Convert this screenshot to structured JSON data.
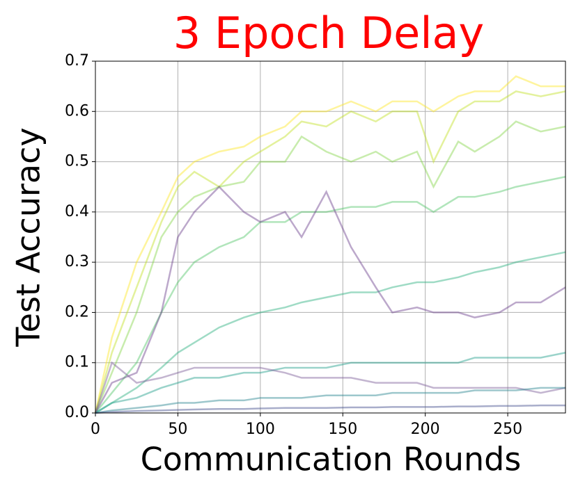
{
  "chart_data": {
    "type": "line",
    "title": "3 Epoch Delay",
    "title_color": "#ff0000",
    "x_label": "Communication Rounds",
    "y_label": "Test Accuracy",
    "x": [
      0,
      10,
      25,
      40,
      50,
      60,
      75,
      90,
      100,
      115,
      125,
      140,
      155,
      170,
      180,
      195,
      205,
      220,
      230,
      245,
      255,
      270,
      285
    ],
    "xlim": [
      0,
      285
    ],
    "xticks": [
      0,
      50,
      100,
      150,
      200,
      250
    ],
    "ylim": [
      0,
      0.7
    ],
    "yticks": [
      {
        "value": 0,
        "label": "0.0"
      },
      0.1,
      0.2,
      0.3,
      0.4,
      0.5,
      0.6,
      0.7
    ],
    "grid": true,
    "series": [
      {
        "color": "#fde725",
        "values": [
          0,
          0.15,
          0.3,
          0.4,
          0.47,
          0.5,
          0.52,
          0.53,
          0.55,
          0.57,
          0.6,
          0.6,
          0.62,
          0.6,
          0.62,
          0.62,
          0.6,
          0.63,
          0.64,
          0.64,
          0.67,
          0.65,
          0.65
        ]
      },
      {
        "color": "#c2df23",
        "values": [
          0,
          0.12,
          0.25,
          0.38,
          0.45,
          0.48,
          0.45,
          0.5,
          0.52,
          0.55,
          0.58,
          0.57,
          0.6,
          0.58,
          0.6,
          0.6,
          0.5,
          0.6,
          0.62,
          0.62,
          0.64,
          0.63,
          0.64
        ]
      },
      {
        "color": "#86d549",
        "values": [
          0,
          0.08,
          0.2,
          0.35,
          0.4,
          0.43,
          0.45,
          0.46,
          0.5,
          0.5,
          0.55,
          0.52,
          0.5,
          0.52,
          0.5,
          0.52,
          0.45,
          0.54,
          0.52,
          0.55,
          0.58,
          0.56,
          0.57
        ]
      },
      {
        "color": "#52c569",
        "values": [
          0,
          0.04,
          0.1,
          0.2,
          0.26,
          0.3,
          0.33,
          0.35,
          0.38,
          0.38,
          0.4,
          0.4,
          0.41,
          0.41,
          0.42,
          0.42,
          0.4,
          0.43,
          0.43,
          0.44,
          0.45,
          0.46,
          0.47
        ]
      },
      {
        "color": "#2ab07f",
        "values": [
          0,
          0.02,
          0.05,
          0.09,
          0.12,
          0.14,
          0.17,
          0.19,
          0.2,
          0.21,
          0.22,
          0.23,
          0.24,
          0.24,
          0.25,
          0.26,
          0.26,
          0.27,
          0.28,
          0.29,
          0.3,
          0.31,
          0.32
        ]
      },
      {
        "color": "#6a3d8b",
        "values": [
          0,
          0.06,
          0.08,
          0.2,
          0.35,
          0.4,
          0.45,
          0.4,
          0.38,
          0.4,
          0.35,
          0.44,
          0.33,
          0.25,
          0.2,
          0.21,
          0.2,
          0.2,
          0.19,
          0.2,
          0.22,
          0.22,
          0.25
        ]
      },
      {
        "color": "#1f9e89",
        "values": [
          0,
          0.02,
          0.03,
          0.05,
          0.06,
          0.07,
          0.07,
          0.08,
          0.08,
          0.09,
          0.09,
          0.09,
          0.1,
          0.1,
          0.1,
          0.1,
          0.1,
          0.1,
          0.11,
          0.11,
          0.11,
          0.11,
          0.12
        ]
      },
      {
        "color": "#7b5a96",
        "values": [
          0,
          0.1,
          0.06,
          0.07,
          0.08,
          0.09,
          0.09,
          0.09,
          0.09,
          0.08,
          0.07,
          0.07,
          0.07,
          0.06,
          0.06,
          0.06,
          0.05,
          0.05,
          0.05,
          0.05,
          0.05,
          0.04,
          0.05
        ]
      },
      {
        "color": "#26828e",
        "values": [
          0,
          0.005,
          0.01,
          0.015,
          0.02,
          0.02,
          0.025,
          0.025,
          0.03,
          0.03,
          0.03,
          0.035,
          0.035,
          0.035,
          0.04,
          0.04,
          0.04,
          0.04,
          0.045,
          0.045,
          0.045,
          0.05,
          0.05
        ]
      },
      {
        "color": "#3e4a89",
        "values": [
          0,
          0.002,
          0.004,
          0.005,
          0.006,
          0.007,
          0.008,
          0.008,
          0.009,
          0.01,
          0.01,
          0.01,
          0.011,
          0.011,
          0.012,
          0.012,
          0.012,
          0.013,
          0.013,
          0.014,
          0.014,
          0.015,
          0.015
        ]
      }
    ]
  }
}
